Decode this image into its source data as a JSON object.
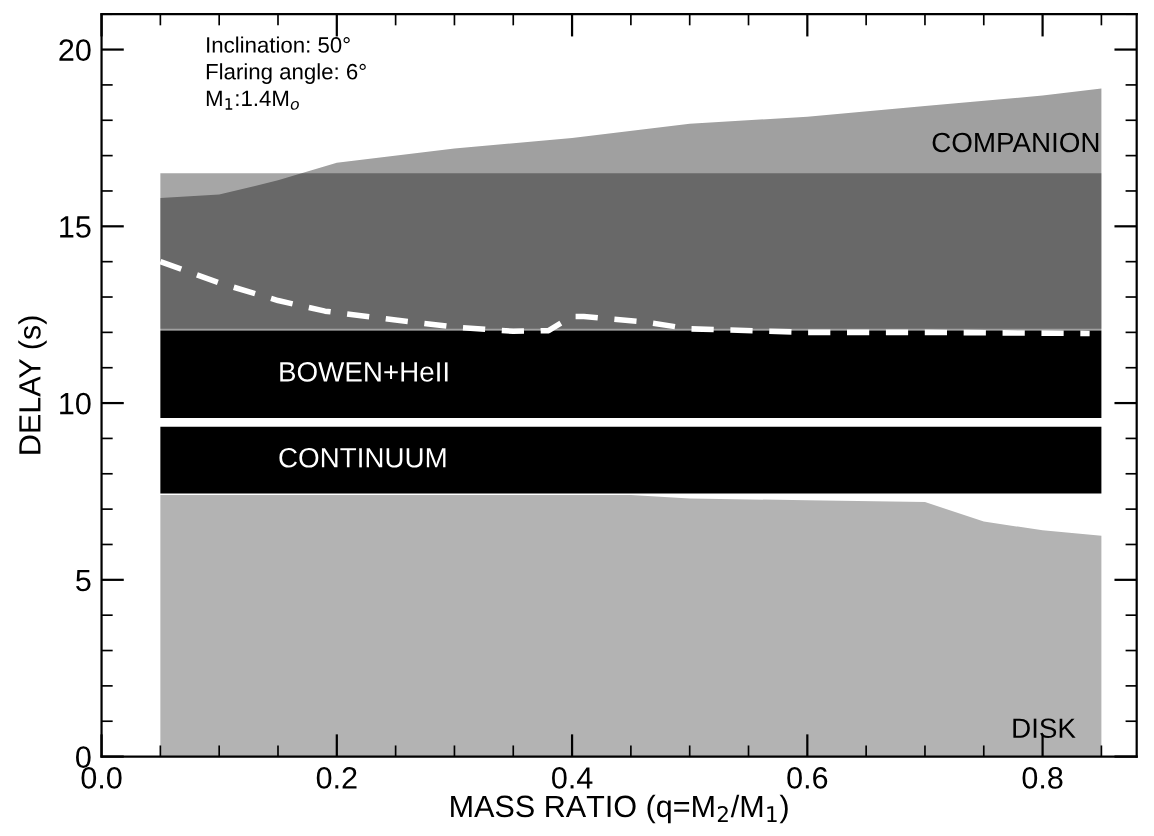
{
  "chart_data": {
    "type": "area",
    "xlabel": "MASS RATIO (q=M$_{2}$/M$_{1}$)",
    "ylabel": "DELAY (s)",
    "xlim": [
      0,
      0.88
    ],
    "ylim": [
      0,
      21
    ],
    "xticks": [
      {
        "value": 0,
        "label": "0.0"
      },
      0.2,
      0.4,
      0.6,
      0.8
    ],
    "yticks": [
      0,
      5,
      10,
      15,
      20
    ],
    "series": [
      {
        "color": "#b3b3b3",
        "x": [
          0.05,
          0.45,
          0.5,
          0.6,
          0.7,
          0.75,
          0.8,
          0.85
        ],
        "values": [
          7.4,
          7.4,
          7.3,
          7.25,
          7.2,
          6.65,
          6.4,
          6.25
        ]
      },
      {
        "color": "#a0a0a0",
        "x": [
          0.05,
          0.1,
          0.15,
          0.2,
          0.3,
          0.4,
          0.5,
          0.6,
          0.7,
          0.8,
          0.85
        ],
        "values": [
          15.8,
          15.9,
          16.3,
          16.8,
          17.2,
          17.5,
          17.9,
          18.1,
          18.4,
          18.7,
          18.9
        ]
      },
      {
        "type": "line",
        "color": "#ffffff",
        "line_style": "dashed",
        "x": [
          0.05,
          0.1,
          0.15,
          0.19,
          0.25,
          0.3,
          0.35,
          0.38,
          0.4,
          0.41,
          0.46,
          0.5,
          0.6,
          0.7,
          0.84
        ],
        "values": [
          14.0,
          13.4,
          12.9,
          12.6,
          12.35,
          12.15,
          12.03,
          12.05,
          12.45,
          12.45,
          12.3,
          12.1,
          12.0,
          12.0,
          11.97
        ]
      }
    ],
    "bands": [
      {
        "axis": "y",
        "from": 12.1,
        "to": 16.5,
        "color": "#000000"
      },
      {
        "axis": "y",
        "from": 9.58,
        "to": 12.05,
        "color": "#000000",
        "label": "BOWEN+HeII"
      },
      {
        "axis": "y",
        "from": 7.44,
        "to": 9.33,
        "color": "#000000",
        "label": "CONTINUUM"
      }
    ],
    "annotations": [
      "Inclination: 50°",
      "Flaring angle: 6°",
      "M$_{1}$:1.4M$_{o}$",
      "COMPANION",
      "DISK"
    ]
  }
}
